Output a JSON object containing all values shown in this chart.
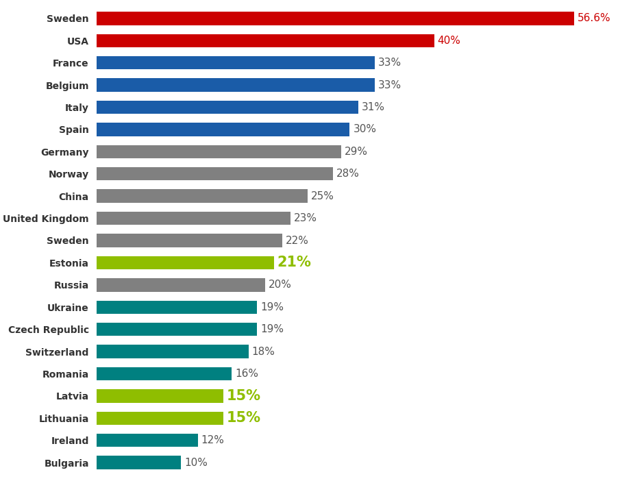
{
  "categories": [
    "Sweden",
    "USA",
    "France",
    "Belgium",
    "Italy",
    "Spain",
    "Germany",
    "Norway",
    "China",
    "United Kingdom",
    "Sweden",
    "Estonia",
    "Russia",
    "Ukraine",
    "Czech Republic",
    "Switzerland",
    "Romania",
    "Latvia",
    "Lithuania",
    "Ireland",
    "Bulgaria"
  ],
  "values": [
    56.6,
    40,
    33,
    33,
    31,
    30,
    29,
    28,
    25,
    23,
    22,
    21,
    20,
    19,
    19,
    18,
    16,
    15,
    15,
    12,
    10
  ],
  "bar_colors": [
    "#cc0000",
    "#cc0000",
    "#1a5ca8",
    "#1a5ca8",
    "#1a5ca8",
    "#1a5ca8",
    "#808080",
    "#808080",
    "#808080",
    "#808080",
    "#808080",
    "#8fbe00",
    "#808080",
    "#008080",
    "#008080",
    "#008080",
    "#008080",
    "#8fbe00",
    "#8fbe00",
    "#008080",
    "#008080"
  ],
  "label_colors": [
    "#cc0000",
    "#cc0000",
    "#555555",
    "#555555",
    "#555555",
    "#555555",
    "#555555",
    "#555555",
    "#555555",
    "#555555",
    "#555555",
    "#8fbe00",
    "#555555",
    "#555555",
    "#555555",
    "#555555",
    "#555555",
    "#8fbe00",
    "#8fbe00",
    "#555555",
    "#555555"
  ],
  "label_bold": [
    false,
    false,
    false,
    false,
    false,
    false,
    false,
    false,
    false,
    false,
    false,
    true,
    false,
    false,
    false,
    false,
    false,
    true,
    true,
    false,
    false
  ],
  "label_fontsize": [
    11,
    11,
    11,
    11,
    11,
    11,
    11,
    11,
    11,
    11,
    11,
    15,
    11,
    11,
    11,
    11,
    11,
    15,
    15,
    11,
    11
  ],
  "label_texts": [
    "56.6%",
    "40%",
    "33%",
    "33%",
    "31%",
    "30%",
    "29%",
    "28%",
    "25%",
    "23%",
    "22%",
    "21%",
    "20%",
    "19%",
    "19%",
    "18%",
    "16%",
    "15%",
    "15%",
    "12%",
    "10%"
  ],
  "background_color": "#ffffff",
  "xlim": [
    0,
    63
  ],
  "figwidth": 9.21,
  "figheight": 7.02,
  "bar_height": 0.6
}
